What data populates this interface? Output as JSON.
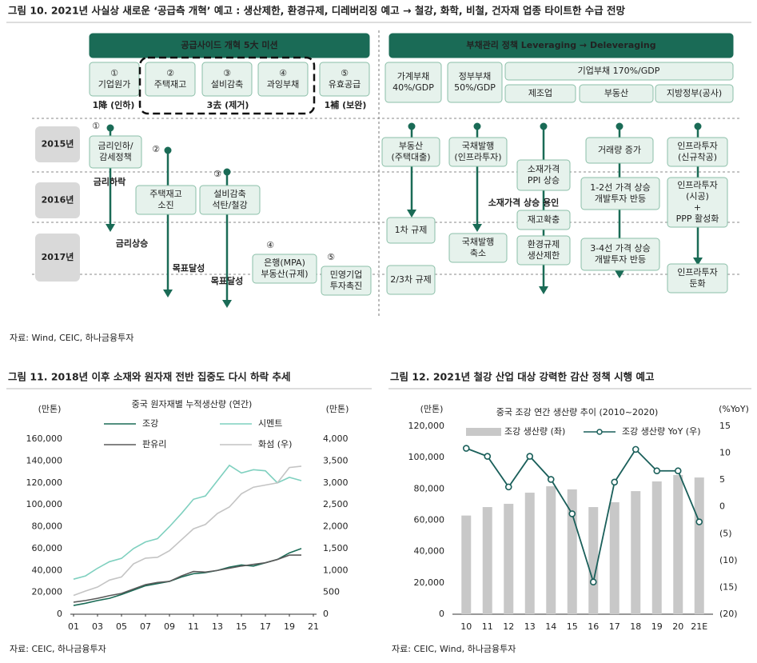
{
  "figure10": {
    "title": "그림 10. 2021년 사실상 새로운 ‘공급측 개혁’ 예고 : 생산제한, 환경규제, 디레버리징 예고 → 철강, 화학, 비철, 건자재 업종 타이트한 수급 전망",
    "supply_header": "공급사이드 개혁 5大 미션",
    "missions": [
      [
        "①",
        "기업원가"
      ],
      [
        "②",
        "주택재고"
      ],
      [
        "③",
        "설비감축"
      ],
      [
        "④",
        "과잉부채"
      ],
      [
        "⑤",
        "유효공급"
      ]
    ],
    "mission_groups": [
      "1降 (인하)",
      "3去 (제거)",
      "1補 (보완)"
    ],
    "debt_header": "부채관리 정책 Leveraging → Deleveraging",
    "debt_boxes": [
      [
        "가계부채",
        "40%/GDP"
      ],
      [
        "정부부채",
        "50%/GDP"
      ]
    ],
    "corporate_debt": "기업부채 170%/GDP",
    "sectors": [
      "제조업",
      "부동산",
      "지방정부(공사)"
    ],
    "years": [
      "2015년",
      "2016년",
      "2017년"
    ],
    "markers": [
      "①",
      "②",
      "③",
      "④",
      "⑤"
    ],
    "boxes": [
      [
        "금리인하/",
        "감세정책"
      ],
      [
        "주택재고",
        "소진"
      ],
      [
        "설비감축",
        "석탄/철강"
      ],
      [
        "은행(MPA)",
        "부동산(규제)"
      ],
      [
        "민영기업",
        "투자촉진"
      ],
      [
        "부동산",
        "(주택대출)"
      ],
      [
        "1차 규제"
      ],
      [
        "2/3차 규제"
      ],
      [
        "국채발행",
        "(인프라투자)"
      ],
      [
        "국채발행",
        "축소"
      ],
      [
        "소재가격",
        "PPI 상승"
      ],
      [
        "재고확충"
      ],
      [
        "환경규제",
        "생산제한"
      ],
      [
        "거래량 증가"
      ],
      [
        "1-2선 가격 상승",
        "개발투자 반등"
      ],
      [
        "3-4선 가격 상승",
        "개발투자 반등"
      ],
      [
        "인프라투자",
        "(신규착공)"
      ],
      [
        "인프라투자",
        "(시공)",
        "+",
        "PPP 활성화"
      ],
      [
        "인프라투자",
        "둔화"
      ]
    ],
    "notes": [
      "금리하락",
      "금리상승",
      "목표달성",
      "목표달성",
      "소재가격 상승 용인"
    ],
    "source": "자료: Wind, CEIC, 하나금융투자"
  },
  "figure11": {
    "title": "그림 11. 2018년 이후 소재와 원자재 전반 집중도 다시 하락 추세",
    "source": "자료: CEIC, 하나금융투자"
  },
  "figure12": {
    "title": "그림 12. 2021년 철강 산업 대상 강력한 감산 정책 시행 예고",
    "source": "자료: CEIC, Wind, 하나금융투자"
  },
  "chart_data": [
    {
      "type": "line",
      "title": "중국 원자재별 누적생산량 (연간)",
      "y_label": "(만톤)",
      "y2_label": "(만톤)",
      "x": [
        1,
        2,
        3,
        4,
        5,
        6,
        7,
        8,
        9,
        10,
        11,
        12,
        13,
        14,
        15,
        16,
        17,
        18,
        19,
        20
      ],
      "xlim": [
        1,
        21
      ],
      "xticks": [
        {
          "value": 1,
          "label": "01"
        },
        {
          "value": 3,
          "label": "03"
        },
        {
          "value": 5,
          "label": "05"
        },
        {
          "value": 7,
          "label": "07"
        },
        {
          "value": 9,
          "label": "09"
        },
        11,
        13,
        15,
        17,
        19,
        21
      ],
      "ylim": [
        0,
        160000
      ],
      "yticks": [
        0,
        {
          "value": 20000,
          "label": "20,000"
        },
        {
          "value": 40000,
          "label": "40,000"
        },
        {
          "value": 60000,
          "label": "60,000"
        },
        {
          "value": 80000,
          "label": "80,000"
        },
        {
          "value": 100000,
          "label": "100,000"
        },
        {
          "value": 120000,
          "label": "120,000"
        },
        {
          "value": 140000,
          "label": "140,000"
        },
        {
          "value": 160000,
          "label": "160,000"
        }
      ],
      "y2lim": [
        0,
        4000
      ],
      "y2ticks": [
        0,
        500,
        {
          "value": 1000,
          "label": "1,000"
        },
        {
          "value": 1500,
          "label": "1,500"
        },
        {
          "value": 2000,
          "label": "2,000"
        },
        {
          "value": 2500,
          "label": "2,500"
        },
        {
          "value": 3000,
          "label": "3,000"
        },
        {
          "value": 3500,
          "label": "3,500"
        },
        {
          "value": 4000,
          "label": "4,000"
        }
      ],
      "series": [
        {
          "name": "조강",
          "color": "#1a6b56",
          "values": [
            8000,
            10000,
            12500,
            14500,
            18000,
            22000,
            26000,
            28000,
            30000,
            34000,
            37000,
            38000,
            40000,
            43000,
            45000,
            44000,
            47000,
            50000,
            56000,
            60000
          ]
        },
        {
          "name": "시멘트",
          "color": "#7fd0bf",
          "values": [
            32000,
            35000,
            42000,
            48000,
            51000,
            60000,
            66000,
            69000,
            80000,
            92000,
            105000,
            108000,
            122000,
            136000,
            129000,
            132000,
            131000,
            120000,
            125000,
            122000
          ]
        },
        {
          "name": "판유리",
          "color": "#5a5a5a",
          "values": [
            11000,
            12500,
            14500,
            17000,
            19000,
            23000,
            27000,
            29000,
            30000,
            35000,
            39000,
            38500,
            40000,
            42000,
            44000,
            45500,
            47000,
            50000,
            54000,
            54000
          ]
        },
        {
          "name": "화섬 (우)",
          "color": "#c4c4c4",
          "axis": "y2",
          "values": [
            430,
            530,
            620,
            780,
            850,
            1150,
            1280,
            1300,
            1450,
            1700,
            1950,
            2050,
            2300,
            2450,
            2750,
            2900,
            2950,
            3000,
            3350,
            3380
          ]
        }
      ]
    },
    {
      "type": "bar",
      "title": "중국 조강 연간 생산량 추이 (2010~2020)",
      "y_label": "(만톤)",
      "y2_label": "(%YoY)",
      "categories": [
        "10",
        "11",
        "12",
        "13",
        "14",
        "15",
        "16",
        "17",
        "18",
        "19",
        "20",
        "21E"
      ],
      "ylim": [
        0,
        120000
      ],
      "yticks": [
        0,
        {
          "value": 20000,
          "label": "20,000"
        },
        {
          "value": 40000,
          "label": "40,000"
        },
        {
          "value": 60000,
          "label": "60,000"
        },
        {
          "value": 80000,
          "label": "80,000"
        },
        {
          "value": 100000,
          "label": "100,000"
        },
        {
          "value": 120000,
          "label": "120,000"
        }
      ],
      "y2lim": [
        -20,
        15
      ],
      "y2ticks": [
        {
          "value": -20,
          "label": "(20)"
        },
        {
          "value": -15,
          "label": "(15)"
        },
        {
          "value": -10,
          "label": "(10)"
        },
        {
          "value": -5,
          "label": "(5)"
        },
        0,
        5,
        10,
        15
      ],
      "series": [
        {
          "name": "조강 생산량 (좌)",
          "type": "bar",
          "color": "#c8c8c8",
          "values": [
            63000,
            68400,
            70500,
            77600,
            81700,
            79700,
            68400,
            71500,
            78600,
            84800,
            88900,
            87300
          ]
        },
        {
          "name": "조강 생산량 YoY (우)",
          "type": "line",
          "axis": "y2",
          "color": "#1a5f5a",
          "values": [
            10.9,
            9.4,
            3.7,
            9.4,
            5.1,
            -1.3,
            -14,
            4.6,
            10.7,
            6.7,
            6.7,
            -2.8
          ]
        }
      ]
    }
  ]
}
